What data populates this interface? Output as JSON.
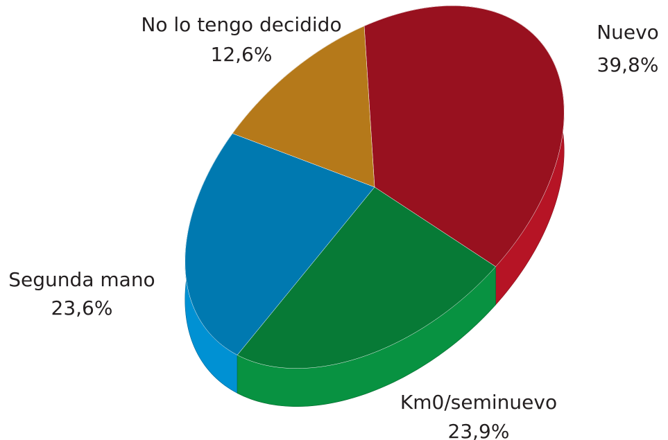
{
  "chart_data": {
    "type": "pie",
    "categories": [
      "Nuevo",
      "Km0/seminuevo",
      "Segunda mano",
      "No lo tengo decidido"
    ],
    "values": [
      39.8,
      23.9,
      23.6,
      12.6
    ],
    "value_labels": [
      "39,8%",
      "23,9%",
      "23,6%",
      "12,6%"
    ],
    "colors": [
      "#98111f",
      "#077a36",
      "#0079b0",
      "#b5791a"
    ]
  }
}
